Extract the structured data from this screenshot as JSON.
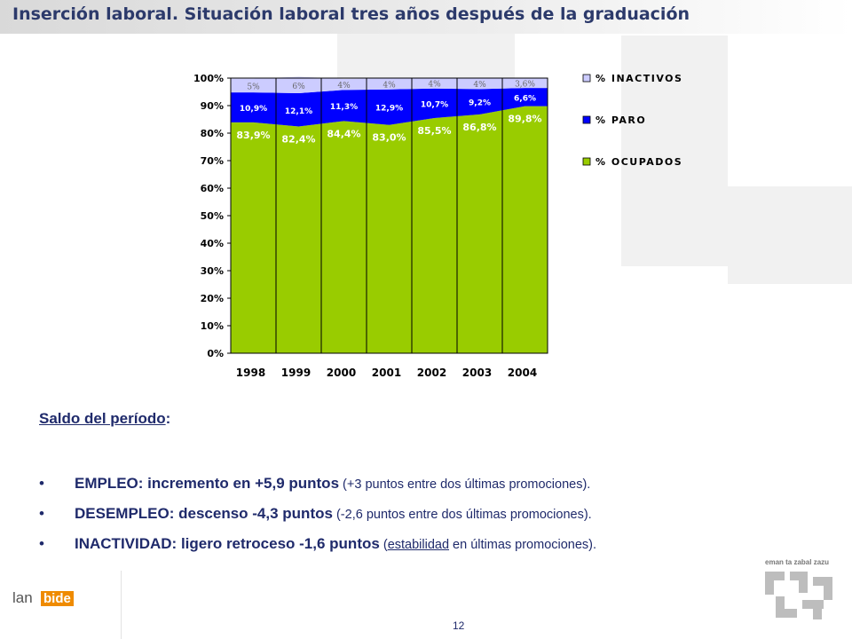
{
  "title": "Inserción laboral. Situación laboral tres años después de la graduación",
  "chart_data": {
    "type": "bar",
    "stacked": true,
    "categories": [
      "1998",
      "1999",
      "2000",
      "2001",
      "2002",
      "2003",
      "2004"
    ],
    "series": [
      {
        "name": "% OCUPADOS",
        "color": "#99cc00",
        "values": [
          83.9,
          82.4,
          84.4,
          83.0,
          85.5,
          86.8,
          89.8
        ],
        "labels": [
          "83,9%",
          "82,4%",
          "84,4%",
          "83,0%",
          "85,5%",
          "86,8%",
          "89,8%"
        ]
      },
      {
        "name": "% PARO",
        "color": "#0000ff",
        "values": [
          10.9,
          12.1,
          11.3,
          12.9,
          10.7,
          9.2,
          6.6
        ],
        "labels": [
          "10,9%",
          "12,1%",
          "11,3%",
          "12,9%",
          "10,7%",
          "9,2%",
          "6,6%"
        ]
      },
      {
        "name": "% INACTIVOS",
        "color": "#ccccff",
        "values": [
          5,
          6,
          4,
          4,
          4,
          4,
          3.6
        ],
        "labels": [
          "5%",
          "6%",
          "4%",
          "4%",
          "4%",
          "4%",
          "3,6%"
        ]
      }
    ],
    "yticks": [
      "0%",
      "10%",
      "20%",
      "30%",
      "40%",
      "50%",
      "60%",
      "70%",
      "80%",
      "90%",
      "100%"
    ],
    "ylim": [
      0,
      100
    ],
    "grid": false,
    "legend_position": "right"
  },
  "saldo": {
    "label": "Saldo del período",
    "suffix": ":"
  },
  "bullets": [
    {
      "bold": "EMPLEO: incremento en +5,9 puntos",
      "detail": " (+3 puntos entre dos últimas promociones)."
    },
    {
      "bold": "DESEMPLEO: descenso -4,3 puntos",
      "detail": " (-2,6 puntos entre dos últimas promociones)."
    },
    {
      "bold": "INACTIVIDAD: ligero retroceso -1,6 puntos",
      "detail_pre": " (",
      "detail_underlined": "estabilidad",
      "detail_post": " en últimas promociones)."
    }
  ],
  "footer": {
    "logo_lan": "lan",
    "logo_bide": "bide",
    "page_number": "12",
    "gov_text": "eman ta zabal zazu"
  }
}
